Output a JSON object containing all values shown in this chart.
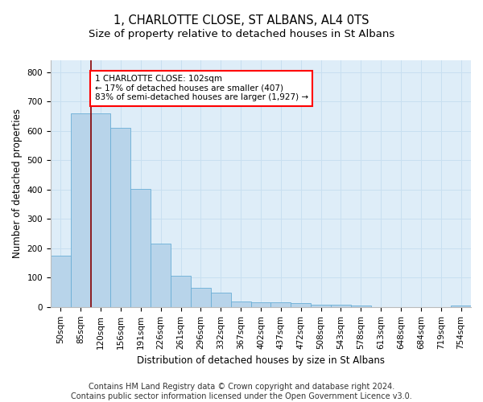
{
  "title": "1, CHARLOTTE CLOSE, ST ALBANS, AL4 0TS",
  "subtitle": "Size of property relative to detached houses in St Albans",
  "xlabel": "Distribution of detached houses by size in St Albans",
  "ylabel": "Number of detached properties",
  "categories": [
    "50sqm",
    "85sqm",
    "120sqm",
    "156sqm",
    "191sqm",
    "226sqm",
    "261sqm",
    "296sqm",
    "332sqm",
    "367sqm",
    "402sqm",
    "437sqm",
    "472sqm",
    "508sqm",
    "543sqm",
    "578sqm",
    "613sqm",
    "648sqm",
    "684sqm",
    "719sqm",
    "754sqm"
  ],
  "values": [
    175,
    660,
    660,
    610,
    402,
    217,
    107,
    65,
    50,
    20,
    16,
    15,
    13,
    7,
    7,
    5,
    0,
    0,
    0,
    0,
    5
  ],
  "bar_color": "#b8d4ea",
  "bar_edge_color": "#6aaed6",
  "grid_color": "#c8dff0",
  "background_color": "#deedf8",
  "annotation_text": "1 CHARLOTTE CLOSE: 102sqm\n← 17% of detached houses are smaller (407)\n83% of semi-detached houses are larger (1,927) →",
  "annotation_box_color": "white",
  "annotation_box_edge_color": "red",
  "footer_text": "Contains HM Land Registry data © Crown copyright and database right 2024.\nContains public sector information licensed under the Open Government Licence v3.0.",
  "ylim": [
    0,
    840
  ],
  "yticks": [
    0,
    100,
    200,
    300,
    400,
    500,
    600,
    700,
    800
  ],
  "title_fontsize": 10.5,
  "subtitle_fontsize": 9.5,
  "axis_label_fontsize": 8.5,
  "tick_fontsize": 7.5,
  "footer_fontsize": 7,
  "red_line_bin": 1
}
